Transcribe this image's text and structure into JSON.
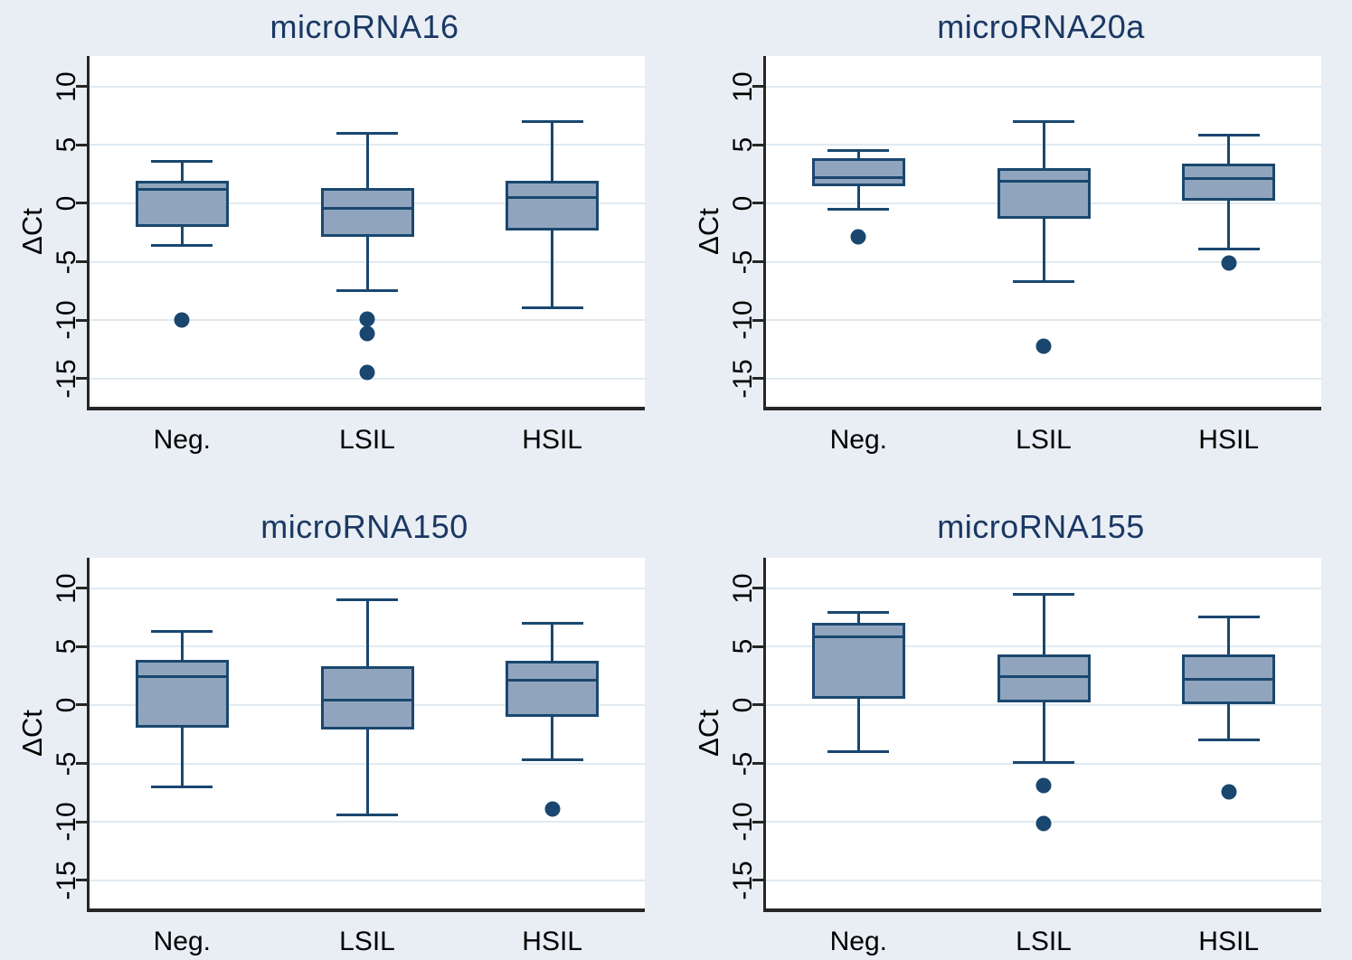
{
  "figure": {
    "background": "#e8eef3"
  },
  "chart_data": {
    "type": "box",
    "layout": {
      "rows": 2,
      "cols": 2,
      "grid": "on",
      "legend": "none",
      "tick_label_angle": 90
    },
    "ylabel": "ΔCt",
    "ylim": [
      -17.4,
      12.6
    ],
    "yticks": [
      10,
      5,
      0,
      -5,
      -10,
      -15
    ],
    "categories": [
      "Neg.",
      "LSIL",
      "HSIL"
    ],
    "colors": {
      "background": "#e8eef3",
      "plot_background": "#ffffff",
      "gridline": "#e0eaf1",
      "axis": "#262626",
      "box_fill": "#90a5bd",
      "box_border": "#1a476f",
      "outlier": "#1a476f",
      "title_text": "#1b3864",
      "tick_text": "#000000"
    },
    "panels": [
      {
        "title": "microRNA16",
        "series": [
          {
            "category": "Neg.",
            "whisker_low": -3.6,
            "q1": -2.0,
            "median": 1.2,
            "q3": 1.9,
            "whisker_high": 3.6,
            "outliers": [
              -10.0
            ]
          },
          {
            "category": "LSIL",
            "whisker_low": -7.5,
            "q1": -2.9,
            "median": -0.4,
            "q3": 1.3,
            "whisker_high": 6.0,
            "outliers": [
              -9.9,
              -11.1,
              -14.5
            ]
          },
          {
            "category": "HSIL",
            "whisker_low": -8.9,
            "q1": -2.3,
            "median": 0.5,
            "q3": 1.9,
            "whisker_high": 7.0,
            "outliers": []
          }
        ]
      },
      {
        "title": "microRNA20a",
        "series": [
          {
            "category": "Neg.",
            "whisker_low": -0.5,
            "q1": 1.5,
            "median": 2.2,
            "q3": 3.9,
            "whisker_high": 4.5,
            "outliers": [
              -2.9
            ]
          },
          {
            "category": "LSIL",
            "whisker_low": -6.7,
            "q1": -1.3,
            "median": 1.9,
            "q3": 3.0,
            "whisker_high": 7.0,
            "outliers": [
              -12.2
            ]
          },
          {
            "category": "HSIL",
            "whisker_low": -3.9,
            "q1": 0.2,
            "median": 2.1,
            "q3": 3.4,
            "whisker_high": 5.8,
            "outliers": [
              -5.1
            ]
          }
        ]
      },
      {
        "title": "microRNA150",
        "series": [
          {
            "category": "Neg.",
            "whisker_low": -7.0,
            "q1": -1.9,
            "median": 2.4,
            "q3": 3.9,
            "whisker_high": 6.3,
            "outliers": []
          },
          {
            "category": "LSIL",
            "whisker_low": -9.4,
            "q1": -2.1,
            "median": 0.4,
            "q3": 3.3,
            "whisker_high": 9.0,
            "outliers": []
          },
          {
            "category": "HSIL",
            "whisker_low": -4.7,
            "q1": -1.0,
            "median": 2.1,
            "q3": 3.8,
            "whisker_high": 7.0,
            "outliers": [
              -8.9
            ]
          }
        ]
      },
      {
        "title": "microRNA155",
        "series": [
          {
            "category": "Neg.",
            "whisker_low": -4.0,
            "q1": 0.5,
            "median": 5.8,
            "q3": 7.0,
            "whisker_high": 7.9,
            "outliers": []
          },
          {
            "category": "LSIL",
            "whisker_low": -4.9,
            "q1": 0.2,
            "median": 2.4,
            "q3": 4.3,
            "whisker_high": 9.5,
            "outliers": [
              -6.9,
              -10.1
            ]
          },
          {
            "category": "HSIL",
            "whisker_low": -3.0,
            "q1": 0.1,
            "median": 2.2,
            "q3": 4.3,
            "whisker_high": 7.5,
            "outliers": [
              -7.4
            ]
          }
        ]
      }
    ]
  }
}
